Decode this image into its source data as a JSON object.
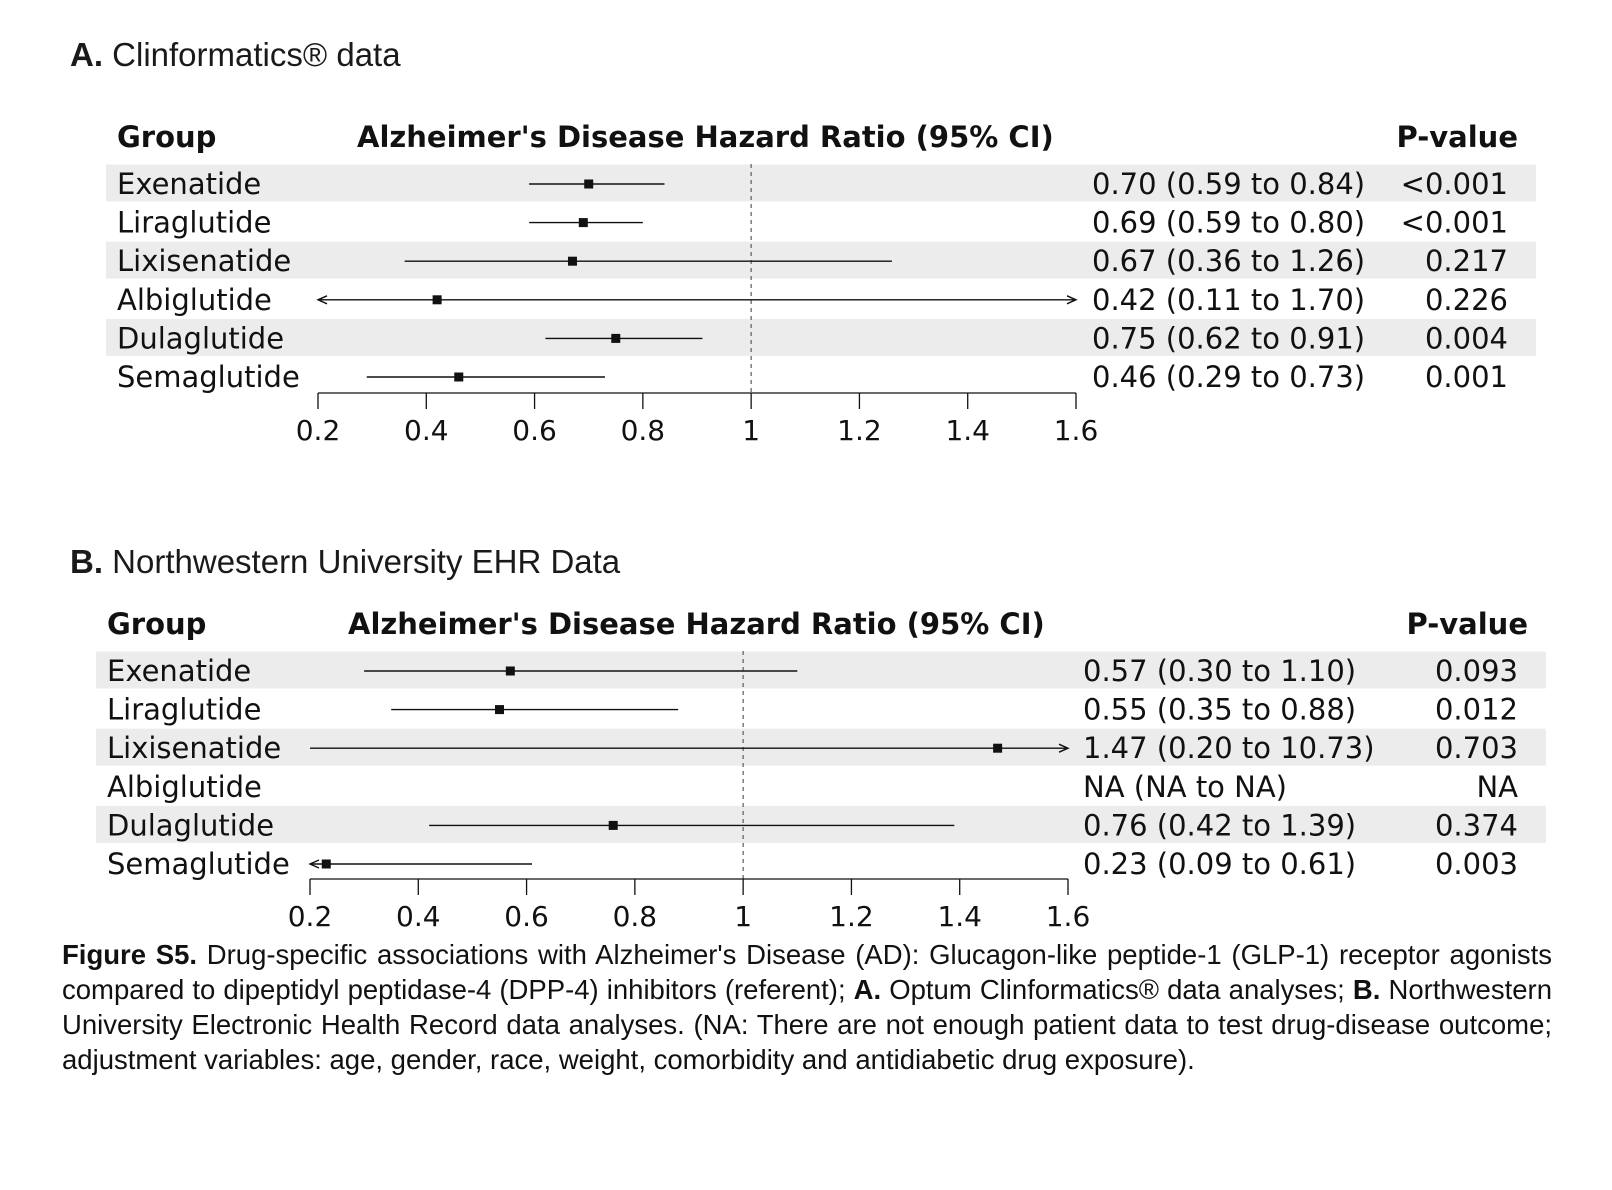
{
  "chart_data": [
    {
      "type": "forest",
      "panel_letter": "A.",
      "title": "Clinformatics® data",
      "headers": {
        "group": "Group",
        "hr": "Alzheimer's Disease Hazard Ratio (95% CI)",
        "p": "P-value"
      },
      "xlim": [
        0.2,
        1.6
      ],
      "ticks": [
        "0.2",
        "0.4",
        "0.6",
        "0.8",
        "1",
        "1.2",
        "1.4",
        "1.6"
      ],
      "reference_line": 1,
      "rows": [
        {
          "group": "Exenatide",
          "hr": 0.7,
          "lo": 0.59,
          "hi": 0.84,
          "hr_text": "0.70 (0.59 to 0.84)",
          "p": "<0.001",
          "shaded": true
        },
        {
          "group": "Liraglutide",
          "hr": 0.69,
          "lo": 0.59,
          "hi": 0.8,
          "hr_text": "0.69 (0.59 to 0.80)",
          "p": "<0.001",
          "shaded": false
        },
        {
          "group": "Lixisenatide",
          "hr": 0.67,
          "lo": 0.36,
          "hi": 1.26,
          "hr_text": "0.67 (0.36 to 1.26)",
          "p": "0.217",
          "shaded": true
        },
        {
          "group": "Albiglutide",
          "hr": 0.42,
          "lo": 0.11,
          "hi": 1.7,
          "hr_text": "0.42 (0.11 to 1.70)",
          "p": "0.226",
          "shaded": false
        },
        {
          "group": "Dulaglutide",
          "hr": 0.75,
          "lo": 0.62,
          "hi": 0.91,
          "hr_text": "0.75 (0.62 to 0.91)",
          "p": "0.004",
          "shaded": true
        },
        {
          "group": "Semaglutide",
          "hr": 0.46,
          "lo": 0.29,
          "hi": 0.73,
          "hr_text": "0.46 (0.29 to 0.73)",
          "p": "0.001",
          "shaded": false
        }
      ]
    },
    {
      "type": "forest",
      "panel_letter": "B.",
      "title": "Northwestern University EHR Data",
      "headers": {
        "group": "Group",
        "hr": "Alzheimer's Disease Hazard Ratio (95% CI)",
        "p": "P-value"
      },
      "xlim": [
        0.2,
        1.6
      ],
      "ticks": [
        "0.2",
        "0.4",
        "0.6",
        "0.8",
        "1",
        "1.2",
        "1.4",
        "1.6"
      ],
      "reference_line": 1,
      "rows": [
        {
          "group": "Exenatide",
          "hr": 0.57,
          "lo": 0.3,
          "hi": 1.1,
          "hr_text": "0.57 (0.30 to 1.10)",
          "p": "0.093",
          "shaded": true
        },
        {
          "group": "Liraglutide",
          "hr": 0.55,
          "lo": 0.35,
          "hi": 0.88,
          "hr_text": "0.55 (0.35 to 0.88)",
          "p": "0.012",
          "shaded": false
        },
        {
          "group": "Lixisenatide",
          "hr": 1.47,
          "lo": 0.2,
          "hi": 10.73,
          "hr_text": "1.47 (0.20 to 10.73)",
          "p": "0.703",
          "shaded": true
        },
        {
          "group": "Albiglutide",
          "hr": null,
          "lo": null,
          "hi": null,
          "hr_text": "NA (NA to NA)",
          "p": "NA",
          "shaded": false
        },
        {
          "group": "Dulaglutide",
          "hr": 0.76,
          "lo": 0.42,
          "hi": 1.39,
          "hr_text": "0.76 (0.42 to 1.39)",
          "p": "0.374",
          "shaded": true
        },
        {
          "group": "Semaglutide",
          "hr": 0.23,
          "lo": 0.09,
          "hi": 0.61,
          "hr_text": "0.23 (0.09 to 0.61)",
          "p": "0.003",
          "shaded": false
        }
      ]
    }
  ],
  "caption": {
    "label": "Figure S5.",
    "part1": " Drug-specific associations with Alzheimer's Disease (AD): Glucagon-like peptide-1 (GLP-1) receptor agonists compared to dipeptidyl peptidase-4 (DPP-4) inhibitors (referent); ",
    "a_label": "A.",
    "part2": " Optum Clinformatics® data analyses; ",
    "b_label": "B.",
    "part3": " Northwestern University Electronic Health Record data analyses. (NA: There are not enough patient data to test drug-disease outcome; adjustment variables: age, gender, race, weight, comorbidity and antidiabetic drug exposure)."
  },
  "colors": {
    "row_shade": "#ececec",
    "ink": "#111111",
    "ref_line": "#666666"
  }
}
